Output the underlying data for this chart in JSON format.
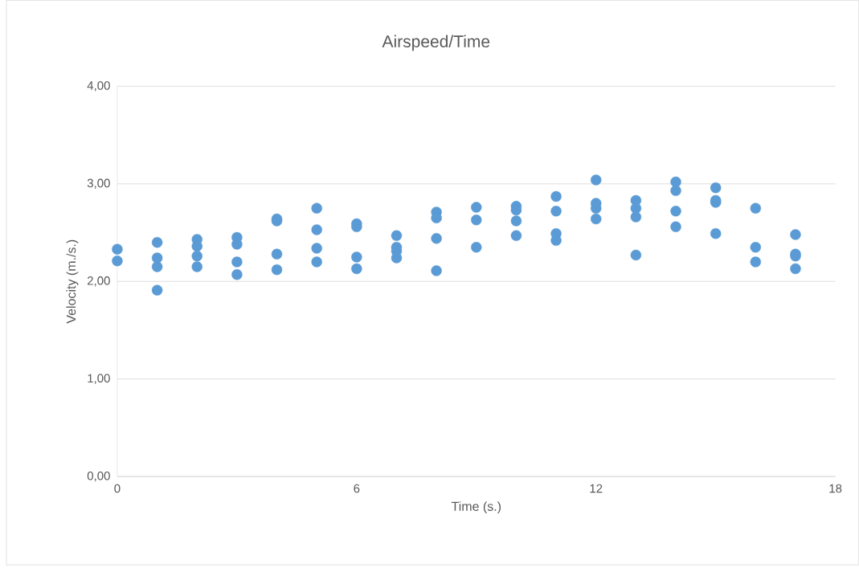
{
  "chart_data": {
    "type": "scatter",
    "title": "Airspeed/Time",
    "xlabel": "Time (s.)",
    "ylabel": "Velocity (m./s.)",
    "xlim": [
      0,
      18
    ],
    "xticks": [
      0,
      6,
      12,
      18
    ],
    "ylim": [
      0,
      4
    ],
    "yticks": [
      {
        "value": 0,
        "label": "0,00"
      },
      {
        "value": 1,
        "label": "1,00"
      },
      {
        "value": 2,
        "label": "2,00"
      },
      {
        "value": 3,
        "label": "3,00"
      },
      {
        "value": 4,
        "label": "4,00"
      }
    ],
    "grid": "y",
    "marker": "circle",
    "series": [
      {
        "color": "#5b9bd5",
        "x": [
          0,
          0,
          1,
          1,
          1,
          1,
          2,
          2,
          2,
          2,
          3,
          3,
          3,
          3,
          4,
          4,
          4,
          4,
          5,
          5,
          5,
          5,
          6,
          6,
          6,
          6,
          7,
          7,
          7,
          7,
          8,
          8,
          8,
          8,
          9,
          9,
          9,
          10,
          10,
          10,
          10,
          11,
          11,
          11,
          11,
          12,
          12,
          12,
          12,
          13,
          13,
          13,
          13,
          14,
          14,
          14,
          14,
          15,
          15,
          15,
          15,
          16,
          16,
          16,
          17,
          17,
          17,
          17
        ],
        "values": [
          2.33,
          2.21,
          2.4,
          2.24,
          2.15,
          1.91,
          2.43,
          2.36,
          2.26,
          2.15,
          2.45,
          2.38,
          2.2,
          2.07,
          2.64,
          2.62,
          2.28,
          2.12,
          2.75,
          2.53,
          2.34,
          2.2,
          2.59,
          2.56,
          2.25,
          2.13,
          2.47,
          2.35,
          2.31,
          2.24,
          2.71,
          2.65,
          2.44,
          2.11,
          2.76,
          2.63,
          2.35,
          2.77,
          2.73,
          2.62,
          2.47,
          2.87,
          2.72,
          2.49,
          2.42,
          3.04,
          2.8,
          2.75,
          2.64,
          2.83,
          2.75,
          2.66,
          2.27,
          3.02,
          2.93,
          2.72,
          2.56,
          2.96,
          2.83,
          2.81,
          2.49,
          2.75,
          2.35,
          2.2,
          2.48,
          2.28,
          2.26,
          2.13
        ]
      }
    ]
  }
}
